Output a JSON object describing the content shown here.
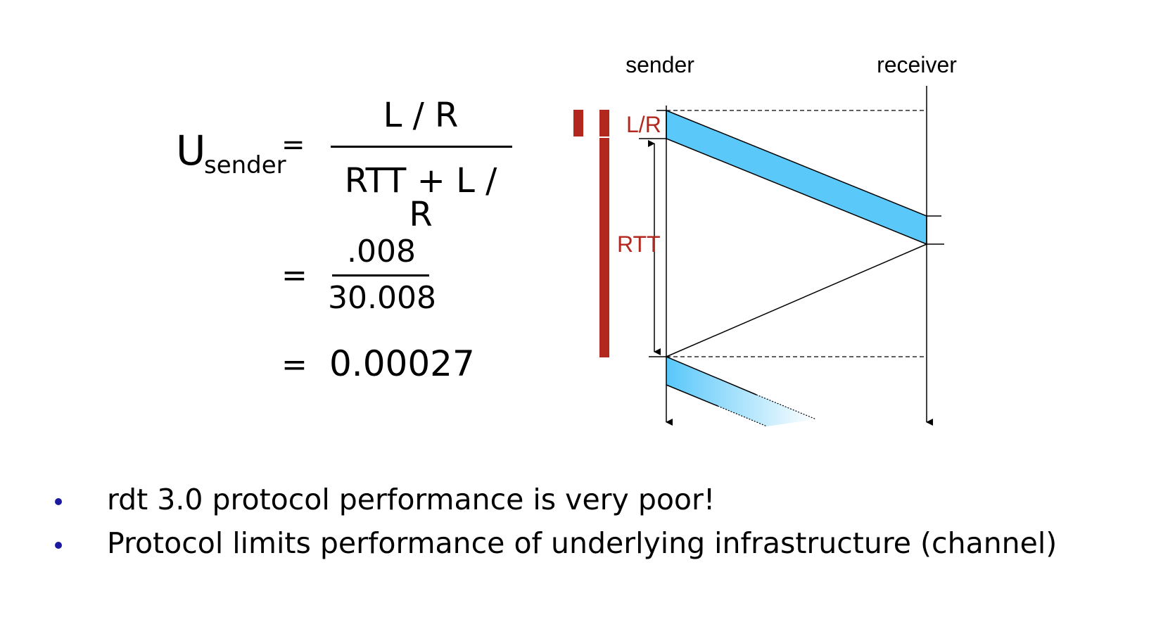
{
  "formula": {
    "u": "U",
    "u_sub": "sender",
    "equals": "=",
    "frac1_numerator": "L / R",
    "frac1_denominator": "RTT + L / R",
    "frac2_numerator": ".008",
    "frac2_denominator": "30.008",
    "result": "0.00027"
  },
  "diagram": {
    "sender_label": "sender",
    "receiver_label": "receiver",
    "lr_label": "L/R",
    "rtt_label": "RTT",
    "packet_color": "#5bc8fa",
    "accent_color": "#b3281e"
  },
  "bullets": [
    "rdt 3.0 protocol performance is very poor!",
    "Protocol limits performance of underlying infrastructure (channel)"
  ]
}
